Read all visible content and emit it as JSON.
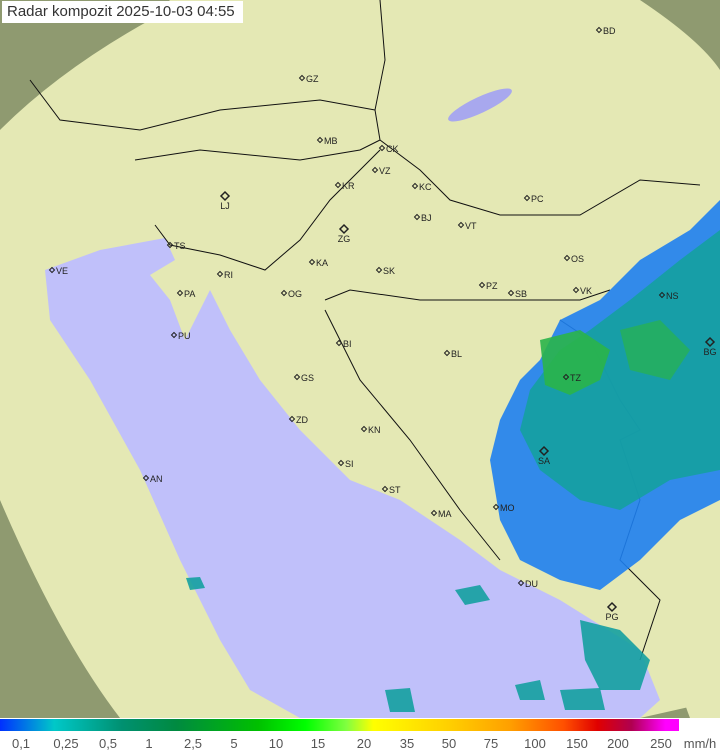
{
  "title": "Radar kompozit  2025-10-03   04:55",
  "legend": {
    "labels": [
      "0,1",
      "0,25",
      "0,5",
      "1",
      "2,5",
      "5",
      "10",
      "15",
      "20",
      "35",
      "50",
      "75",
      "100",
      "150",
      "200",
      "250"
    ],
    "unit": "mm/h"
  },
  "cities": [
    "BD",
    "GZ",
    "MB",
    "CK",
    "VZ",
    "KR",
    "KC",
    "PC",
    "LJ",
    "BJ",
    "VT",
    "TS",
    "ZG",
    "OS",
    "VE",
    "KA",
    "SK",
    "RI",
    "PA",
    "OG",
    "PZ",
    "SB",
    "VK",
    "NS",
    "PU",
    "BI",
    "BL",
    "BG",
    "TZ",
    "GS",
    "ZD",
    "KN",
    "SA",
    "AN",
    "SI",
    "ST",
    "MO",
    "MA",
    "DU",
    "PG"
  ],
  "colors": {
    "sea": "#c0c0fa",
    "land": "#e4e8b4",
    "outside": "#8f9a70",
    "radar_light": "#1e7ff0",
    "radar_teal": "#14a0a0",
    "radar_green": "#2ab44a"
  }
}
